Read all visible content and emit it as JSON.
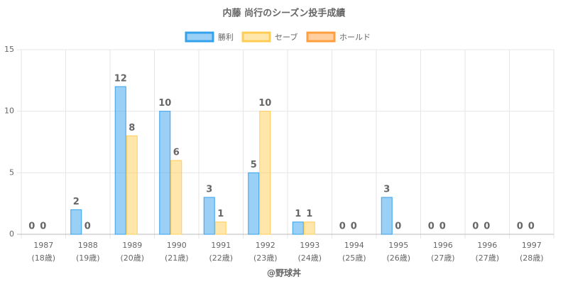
{
  "chart_data": {
    "type": "bar",
    "title": "内藤 尚行のシーズン投手成績",
    "categories": [
      "1987",
      "1988",
      "1989",
      "1990",
      "1991",
      "1992",
      "1993",
      "1994",
      "1995",
      "1996",
      "1996",
      "1997"
    ],
    "ages": [
      "(18歳)",
      "(19歳)",
      "(20歳)",
      "(21歳)",
      "(22歳)",
      "(23歳)",
      "(24歳)",
      "(25歳)",
      "(26歳)",
      "(27歳)",
      "(27歳)",
      "(28歳)"
    ],
    "series": [
      {
        "name": "勝利",
        "color": "#36a2eb",
        "values": [
          0,
          2,
          12,
          10,
          3,
          5,
          1,
          0,
          3,
          0,
          0,
          0
        ]
      },
      {
        "name": "セーブ",
        "color": "#ffcd56",
        "values": [
          0,
          0,
          8,
          6,
          1,
          10,
          1,
          0,
          0,
          0,
          0,
          0
        ]
      },
      {
        "name": "ホールド",
        "color": "#ff9f40",
        "values": [
          null,
          null,
          null,
          null,
          null,
          null,
          null,
          null,
          null,
          null,
          null,
          null
        ]
      }
    ],
    "ylim": [
      0,
      15
    ],
    "yticks": [
      0,
      5,
      10,
      15
    ],
    "grid": true,
    "legend": "top",
    "footer": "@野球丼"
  }
}
